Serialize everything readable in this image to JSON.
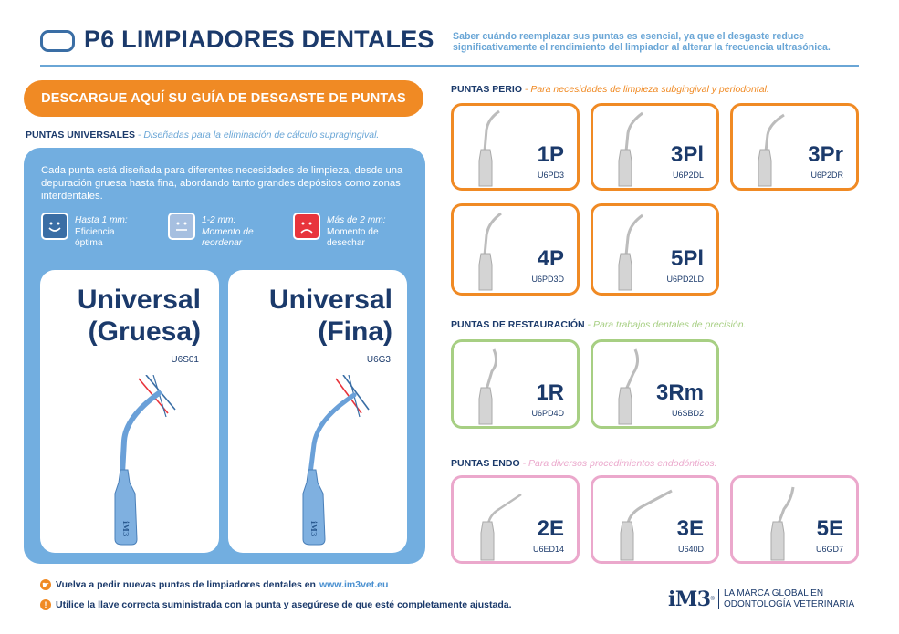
{
  "header": {
    "title": "P6 LIMPIADORES DENTALES",
    "intro": "Saber cuándo reemplazar sus puntas es esencial, ya que el desgaste reduce significativamente el rendimiento del limpiador al alterar la frecuencia ultrasónica."
  },
  "download_button": "DESCARGUE AQUÍ SU GUÍA DE DESGASTE DE PUNTAS",
  "universal": {
    "heading": "PUNTAS UNIVERSALES",
    "subheading": " - Diseñadas para la eliminación de cálculo supragingival.",
    "intro": "Cada punta está diseñada para diferentes necesidades de limpieza, desde una depuración gruesa hasta fina, abordando tanto grandes depósitos como zonas interdentales.",
    "legend": [
      {
        "range": "Hasta 1 mm:",
        "text1": "Eficiencia",
        "text2": "óptima",
        "color": "#3a6ea5"
      },
      {
        "range": "1-2 mm:",
        "text1": "Momento de",
        "text2": "reordenar",
        "color": "#a6bfe0"
      },
      {
        "range": "Más de 2 mm:",
        "text1": "Momento de",
        "text2": "desechar",
        "color": "#e8343c"
      }
    ],
    "cards": [
      {
        "name1": "Universal",
        "name2": "(Gruesa)",
        "code": "U6S01"
      },
      {
        "name1": "Universal",
        "name2": "(Fina)",
        "code": "U6G3"
      }
    ],
    "tip_brand": "iM3"
  },
  "perio": {
    "heading": "PUNTAS PERIO",
    "subheading": " - Para necesidades de limpieza subgingival y periodontal.",
    "tips": [
      {
        "name": "1P",
        "code": "U6PD3"
      },
      {
        "name": "3Pl",
        "code": "U6P2DL"
      },
      {
        "name": "3Pr",
        "code": "U6P2DR"
      },
      {
        "name": "4P",
        "code": "U6PD3D"
      },
      {
        "name": "5Pl",
        "code": "U6PD2LD"
      }
    ]
  },
  "restauracion": {
    "heading": "PUNTAS DE RESTAURACIÓN",
    "subheading": " - Para trabajos dentales de precisión.",
    "tips": [
      {
        "name": "1R",
        "code": "U6PD4D"
      },
      {
        "name": "3Rm",
        "code": "U6SBD2"
      }
    ]
  },
  "endo": {
    "heading": "PUNTAS ENDO",
    "subheading": " - Para diversos procedimientos endodónticos.",
    "tips": [
      {
        "name": "2E",
        "code": "U6ED14"
      },
      {
        "name": "3E",
        "code": "U640D"
      },
      {
        "name": "5E",
        "code": "U6GD7"
      }
    ]
  },
  "footer": {
    "reorder_text": "Vuelva a pedir nuevas puntas de limpiadores dentales en",
    "reorder_link": "www.im3vet.eu",
    "wrench_text": "Utilice la llave correcta suministrada con la punta y asegúrese de que esté completamente ajustada.",
    "logo": "iM3",
    "logo_registered": "®",
    "tagline1": "LA MARCA GLOBAL EN",
    "tagline2": "ODONTOLOGÍA VETERINARIA"
  },
  "colors": {
    "navy": "#1b3a6b",
    "accent_blue": "#72aee0",
    "orange": "#f08a24",
    "green": "#a7cf83",
    "pink": "#eba8cc"
  }
}
